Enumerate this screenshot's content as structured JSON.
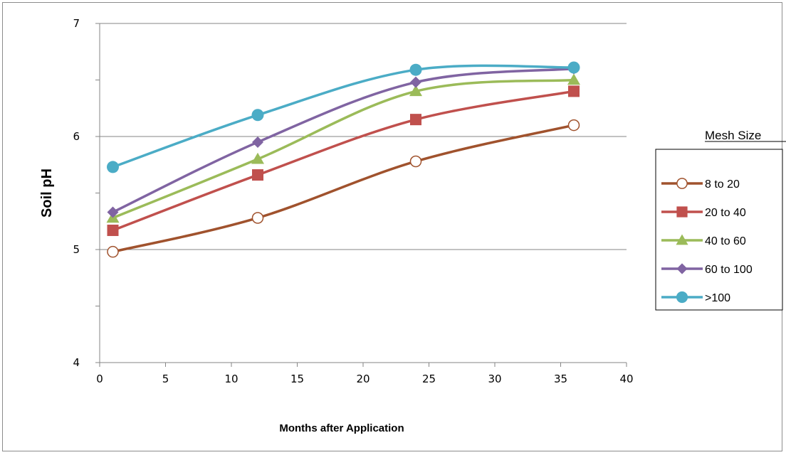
{
  "chart_data": {
    "type": "line",
    "xlabel": "Months after Application",
    "ylabel": "Soil pH",
    "xlim": [
      0,
      40
    ],
    "ylim": [
      4,
      7
    ],
    "x_ticks": [
      "0",
      "5",
      "10",
      "15",
      "20",
      "25",
      "30",
      "35",
      "40"
    ],
    "y_ticks": [
      "4",
      "5",
      "6",
      "7"
    ],
    "grid": "horizontal major at 5, 6, 7",
    "smooth": true,
    "legend": {
      "title": "Mesh Size",
      "placement": "right"
    },
    "x": [
      1,
      12,
      24,
      36
    ],
    "series": [
      {
        "name": "8 to 20",
        "values": [
          4.98,
          5.28,
          5.78,
          6.1
        ],
        "color": "#A0522D",
        "marker": "open-circle"
      },
      {
        "name": "20 to 40",
        "values": [
          5.17,
          5.66,
          6.15,
          6.4
        ],
        "color": "#C0504D",
        "marker": "square"
      },
      {
        "name": "40 to 60",
        "values": [
          5.28,
          5.8,
          6.4,
          6.5
        ],
        "color": "#9BBB59",
        "marker": "triangle"
      },
      {
        "name": "60 to 100",
        "values": [
          5.33,
          5.95,
          6.48,
          6.6
        ],
        "color": "#8064A2",
        "marker": "diamond"
      },
      {
        "name": ">100",
        "values": [
          5.73,
          6.19,
          6.59,
          6.61
        ],
        "color": "#4BACC6",
        "marker": "circle"
      }
    ]
  }
}
